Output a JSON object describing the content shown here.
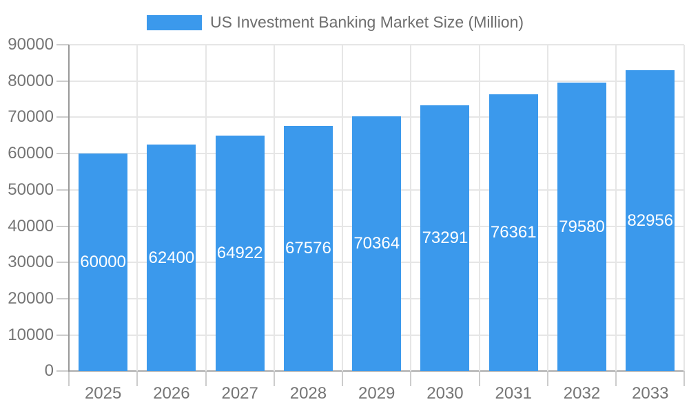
{
  "legend": {
    "label": "US Investment Banking Market Size (Million)"
  },
  "chart_data": {
    "type": "bar",
    "title": "US Investment Banking Market Size (Million)",
    "series_name": "US Investment Banking Market Size (Million)",
    "categories": [
      "2025",
      "2026",
      "2027",
      "2028",
      "2029",
      "2030",
      "2031",
      "2032",
      "2033"
    ],
    "values": [
      60000,
      62400,
      64922,
      67576,
      70364,
      73291,
      76361,
      79580,
      82956
    ],
    "value_labels": [
      "60000",
      "62400",
      "64922",
      "67576",
      "70364",
      "73291",
      "76361",
      "79580",
      "82956"
    ],
    "xlabel": "",
    "ylabel": "",
    "ylim": [
      0,
      90000
    ],
    "ytick_interval": 10000,
    "ytick_labels": [
      "0",
      "10000",
      "20000",
      "30000",
      "40000",
      "50000",
      "60000",
      "70000",
      "80000",
      "90000"
    ],
    "grid": true,
    "legend_position": "top",
    "colors": {
      "bar": "#3B99EC",
      "bar_value_text": "#ffffff",
      "axis_text": "#757575",
      "legend_text": "#6e6e6e",
      "gridline": "#e6e6e6",
      "tick": "#cccccc",
      "y_axis_line": "#999999",
      "baseline": "#ababab"
    }
  }
}
